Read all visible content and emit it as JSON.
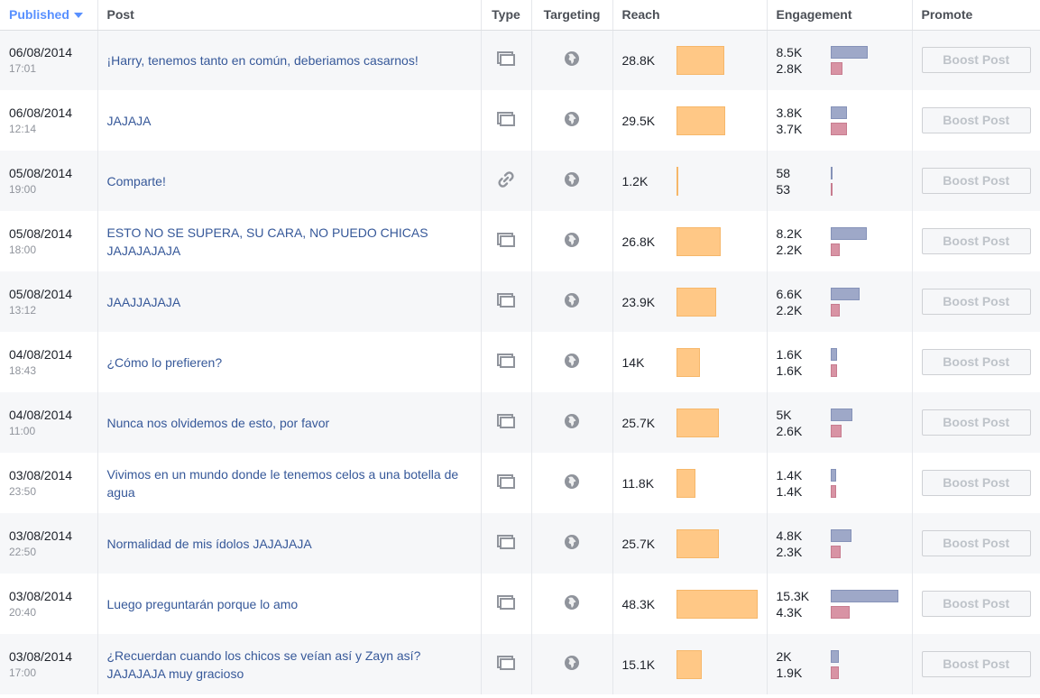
{
  "headers": {
    "published": "Published",
    "post": "Post",
    "type": "Type",
    "targeting": "Targeting",
    "reach": "Reach",
    "engagement": "Engagement",
    "promote": "Promote"
  },
  "colors": {
    "reach_bar": "#ffc886",
    "engagement_a": "#9ea8c8",
    "engagement_b": "#d893a4",
    "link": "#365899",
    "sort_active": "#5890ff"
  },
  "reach_max": 48.3,
  "engagement_max": 15.3,
  "rows": [
    {
      "date": "06/08/2014",
      "time": "17:01",
      "post": "¡Harry, tenemos tanto en común, deberiamos casarnos!",
      "type_icon": "photo-icon",
      "reach": "28.8K",
      "reach_value": 28.8,
      "eng_a": "8.5K",
      "eng_a_value": 8.5,
      "eng_b": "2.8K",
      "eng_b_value": 2.8,
      "boost": "Boost Post"
    },
    {
      "date": "06/08/2014",
      "time": "12:14",
      "post": "JAJAJA",
      "type_icon": "photo-icon",
      "reach": "29.5K",
      "reach_value": 29.5,
      "eng_a": "3.8K",
      "eng_a_value": 3.8,
      "eng_b": "3.7K",
      "eng_b_value": 3.7,
      "boost": "Boost Post"
    },
    {
      "date": "05/08/2014",
      "time": "19:00",
      "post": "Comparte!",
      "type_icon": "link-icon",
      "reach": "1.2K",
      "reach_value": 1.2,
      "eng_a": "58",
      "eng_a_value": 0.058,
      "eng_b": "53",
      "eng_b_value": 0.053,
      "boost": "Boost Post"
    },
    {
      "date": "05/08/2014",
      "time": "18:00",
      "post": "ESTO NO SE SUPERA, SU CARA, NO PUEDO CHICAS JAJAJAJAJA",
      "type_icon": "photo-icon",
      "reach": "26.8K",
      "reach_value": 26.8,
      "eng_a": "8.2K",
      "eng_a_value": 8.2,
      "eng_b": "2.2K",
      "eng_b_value": 2.2,
      "boost": "Boost Post"
    },
    {
      "date": "05/08/2014",
      "time": "13:12",
      "post": "JAAJJAJAJA",
      "type_icon": "photo-icon",
      "reach": "23.9K",
      "reach_value": 23.9,
      "eng_a": "6.6K",
      "eng_a_value": 6.6,
      "eng_b": "2.2K",
      "eng_b_value": 2.2,
      "boost": "Boost Post"
    },
    {
      "date": "04/08/2014",
      "time": "18:43",
      "post": "¿Cómo lo prefieren?",
      "type_icon": "photo-icon",
      "reach": "14K",
      "reach_value": 14,
      "eng_a": "1.6K",
      "eng_a_value": 1.6,
      "eng_b": "1.6K",
      "eng_b_value": 1.6,
      "boost": "Boost Post"
    },
    {
      "date": "04/08/2014",
      "time": "11:00",
      "post": "Nunca nos olvidemos de esto, por favor",
      "type_icon": "photo-icon",
      "reach": "25.7K",
      "reach_value": 25.7,
      "eng_a": "5K",
      "eng_a_value": 5,
      "eng_b": "2.6K",
      "eng_b_value": 2.6,
      "boost": "Boost Post"
    },
    {
      "date": "03/08/2014",
      "time": "23:50",
      "post": "Vivimos en un mundo donde le tenemos celos a una botella de agua",
      "type_icon": "photo-icon",
      "reach": "11.8K",
      "reach_value": 11.8,
      "eng_a": "1.4K",
      "eng_a_value": 1.4,
      "eng_b": "1.4K",
      "eng_b_value": 1.4,
      "boost": "Boost Post"
    },
    {
      "date": "03/08/2014",
      "time": "22:50",
      "post": "Normalidad de mis ídolos JAJAJAJA",
      "type_icon": "photo-icon",
      "reach": "25.7K",
      "reach_value": 25.7,
      "eng_a": "4.8K",
      "eng_a_value": 4.8,
      "eng_b": "2.3K",
      "eng_b_value": 2.3,
      "boost": "Boost Post"
    },
    {
      "date": "03/08/2014",
      "time": "20:40",
      "post": "Luego preguntarán porque lo amo",
      "type_icon": "photo-icon",
      "reach": "48.3K",
      "reach_value": 48.3,
      "eng_a": "15.3K",
      "eng_a_value": 15.3,
      "eng_b": "4.3K",
      "eng_b_value": 4.3,
      "boost": "Boost Post"
    },
    {
      "date": "03/08/2014",
      "time": "17:00",
      "post": "¿Recuerdan cuando los chicos se veían así y Zayn así? JAJAJAJA muy gracioso",
      "type_icon": "photo-icon",
      "reach": "15.1K",
      "reach_value": 15.1,
      "eng_a": "2K",
      "eng_a_value": 2,
      "eng_b": "1.9K",
      "eng_b_value": 1.9,
      "boost": "Boost Post"
    }
  ]
}
